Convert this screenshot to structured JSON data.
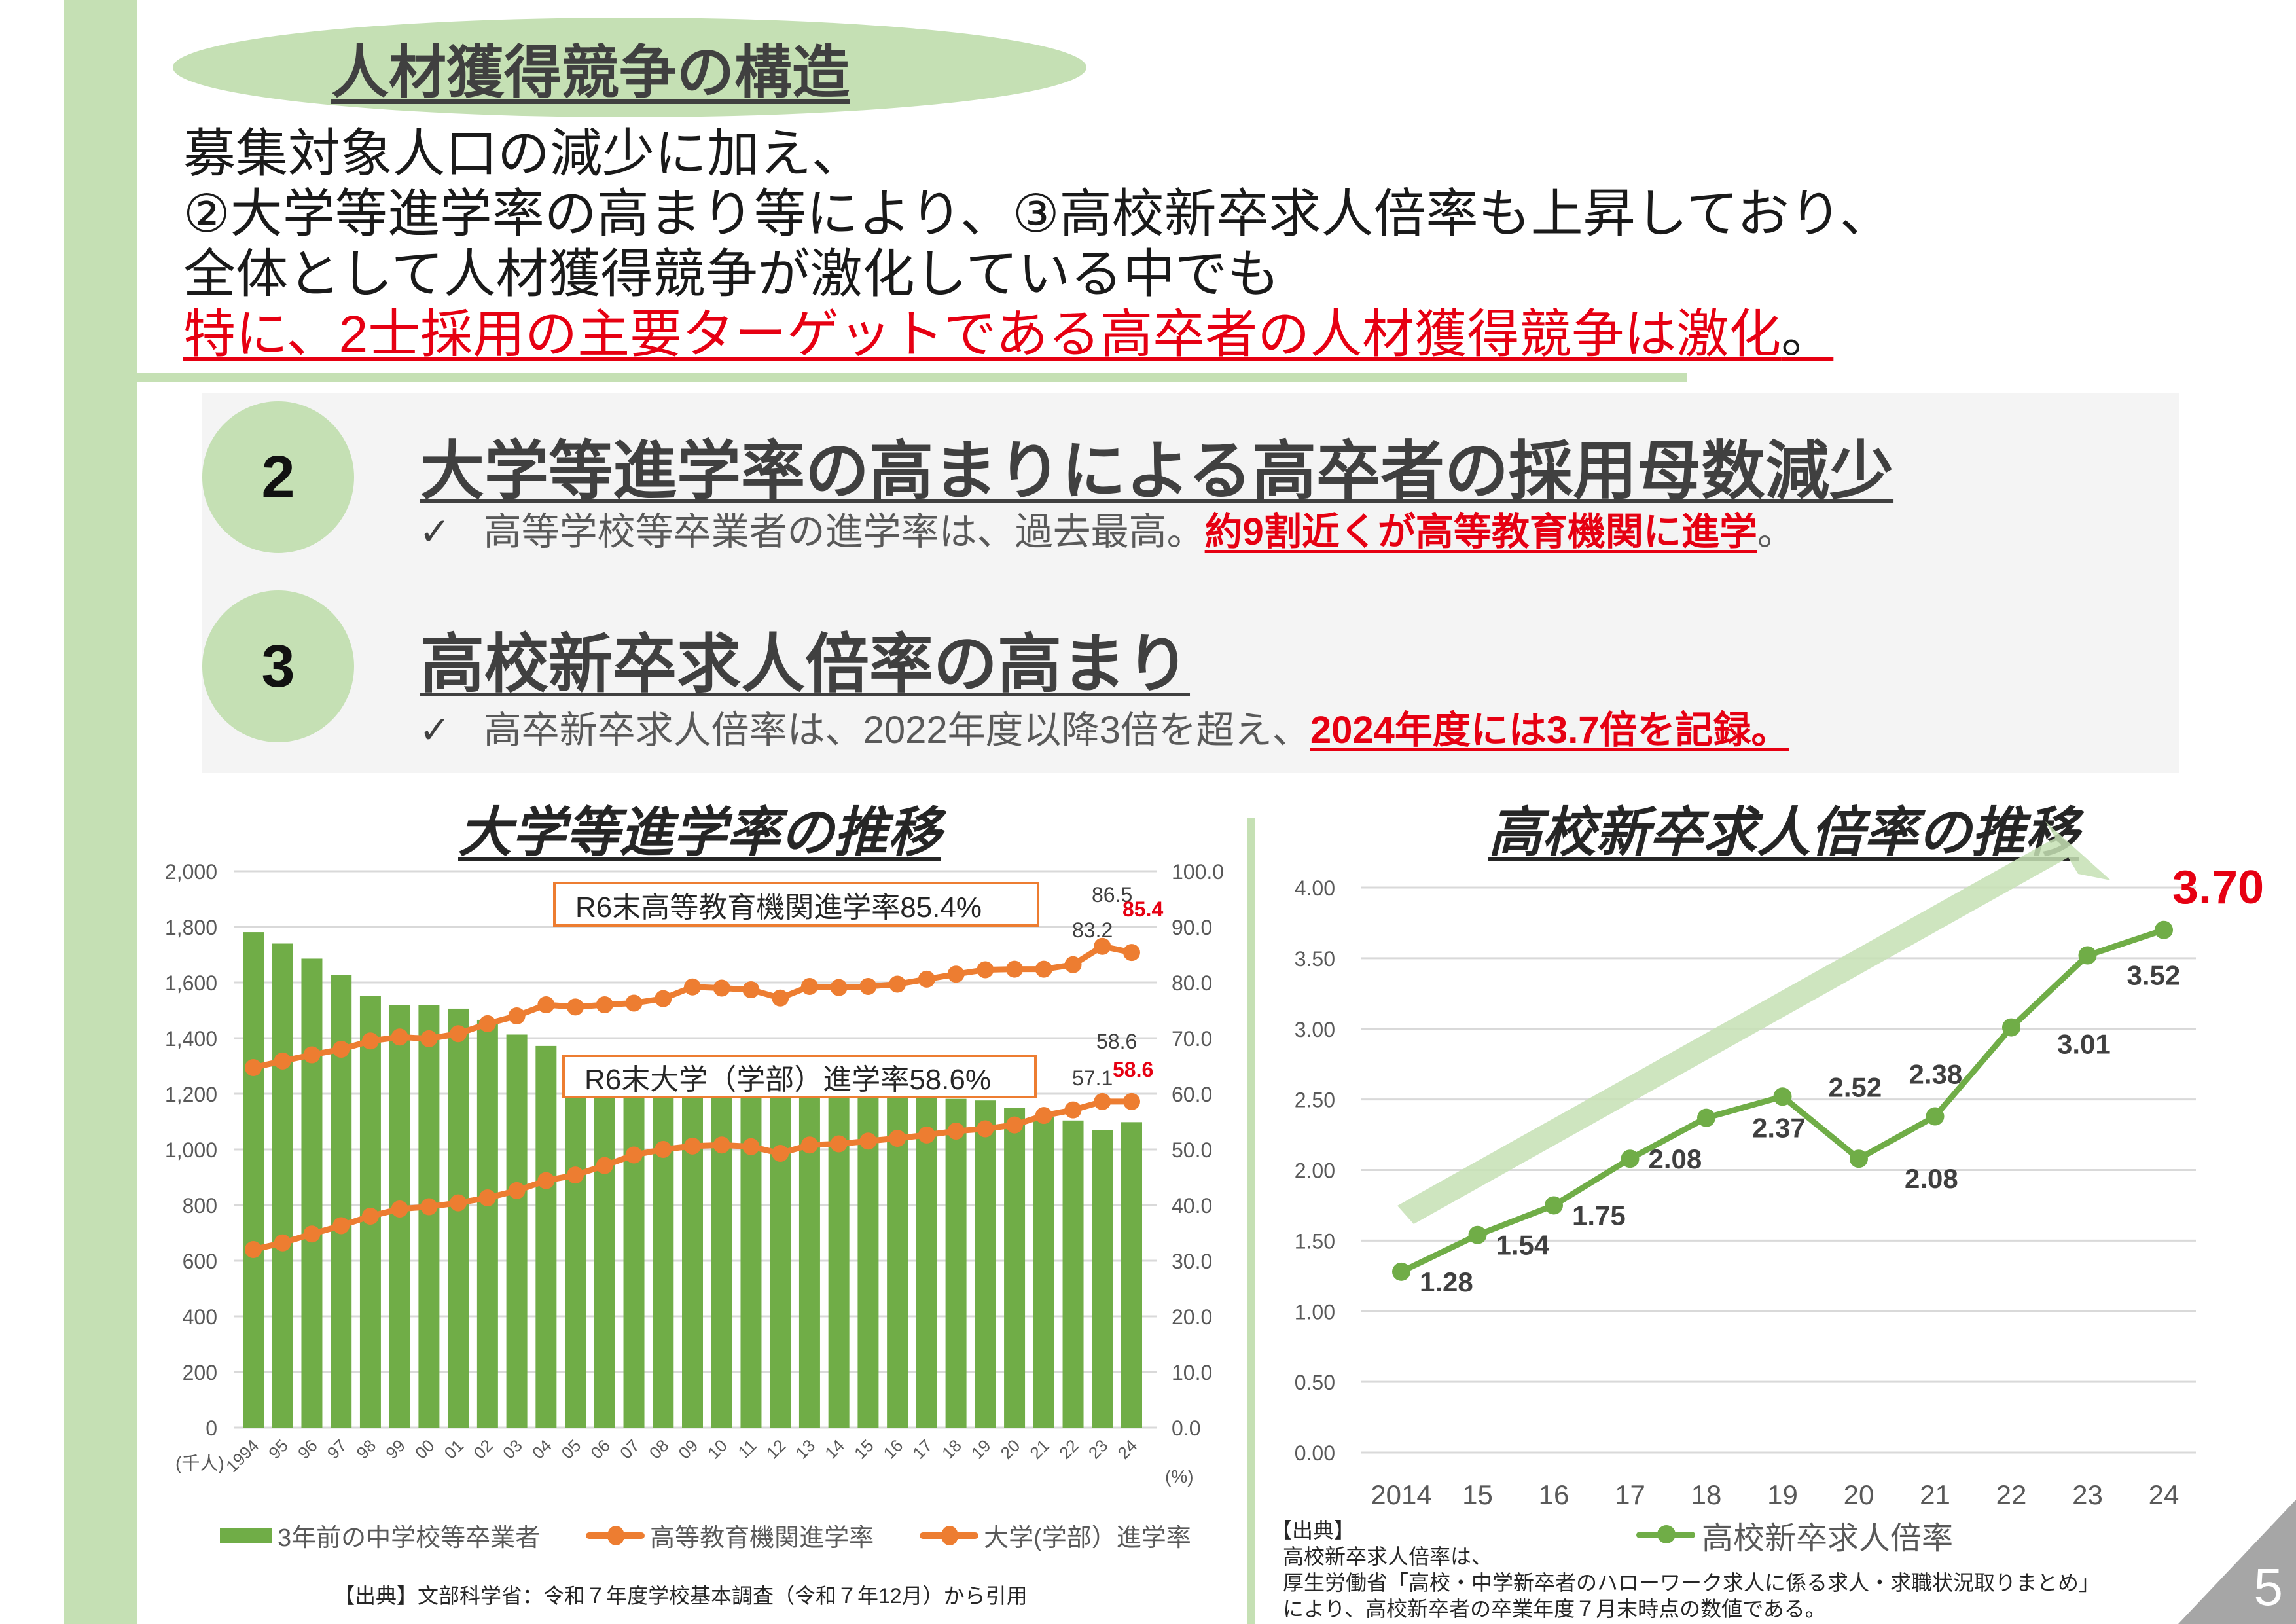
{
  "header": {
    "title": "人材獲得競争の構造"
  },
  "intro": {
    "line1": "募集対象人口の減少に加え、",
    "line2": "②大学等進学率の高まり等により、③高校新卒求人倍率も上昇しており、",
    "line3": "全体として人材獲得競争が激化している中でも",
    "line4": "特に、2士採用の主要ターゲットである高卒者の人材獲得競争は激化",
    "line4_end": "。"
  },
  "points": [
    {
      "number": "2",
      "heading": "大学等進学率の高まりによる高卒者の採用母数減少",
      "check": "✓",
      "text": "高等学校等卒業者の進学率は、過去最高。",
      "highlight": "約9割近くが高等教育機関に進学",
      "tail": "。"
    },
    {
      "number": "3",
      "heading": "高校新卒求人倍率の高まり",
      "check": "✓",
      "text": "高卒新卒求人倍率は、2022年度以降3倍を超え、",
      "highlight": "2024年度には3.7倍を記録。",
      "tail": ""
    }
  ],
  "colors": {
    "green": "#70ad47",
    "light_green": "#c5e0b4",
    "orange": "#ed7d31",
    "red": "#e60012"
  },
  "chart_data": [
    {
      "type": "bar+line",
      "title": "大学等進学率の推移",
      "categories": [
        "1994",
        "95",
        "96",
        "97",
        "98",
        "99",
        "00",
        "01",
        "02",
        "03",
        "04",
        "05",
        "06",
        "07",
        "08",
        "09",
        "10",
        "11",
        "12",
        "13",
        "14",
        "15",
        "16",
        "17",
        "18",
        "19",
        "20",
        "21",
        "22",
        "23",
        "24"
      ],
      "y_left": {
        "label": "(千人)",
        "range": [
          0,
          2000
        ],
        "ticks": [
          "0",
          "200",
          "400",
          "600",
          "800",
          "1,000",
          "1,200",
          "1,400",
          "1,600",
          "1,800",
          "2,000"
        ]
      },
      "y_right": {
        "label": "(%)",
        "range": [
          0,
          100
        ],
        "ticks": [
          "0.0",
          "10.0",
          "20.0",
          "30.0",
          "40.0",
          "50.0",
          "60.0",
          "70.0",
          "80.0",
          "90.0",
          "100.0"
        ]
      },
      "grid": true,
      "series": [
        {
          "name": "3年前の中学校等卒業者",
          "type": "bar",
          "axis": "left",
          "values": [
            1781,
            1740,
            1686,
            1628,
            1552,
            1518,
            1518,
            1506,
            1466,
            1413,
            1372,
            1237,
            1211,
            1213,
            1196,
            1202,
            1213,
            1227,
            1207,
            1195,
            1197,
            1191,
            1185,
            1186,
            1182,
            1176,
            1150,
            1116,
            1104,
            1070,
            1098
          ]
        },
        {
          "name": "高等教育機関進学率",
          "type": "line",
          "axis": "right",
          "values": [
            64.7,
            65.9,
            67.0,
            68.0,
            69.5,
            70.2,
            69.9,
            70.8,
            72.6,
            74.0,
            76.0,
            75.6,
            76.0,
            76.3,
            77.1,
            79.2,
            79.0,
            78.7,
            77.2,
            79.3,
            79.1,
            79.3,
            79.7,
            80.6,
            81.5,
            82.3,
            82.4,
            82.4,
            83.2,
            86.5,
            85.4
          ]
        },
        {
          "name": "大学(学部）進学率",
          "type": "line",
          "axis": "right",
          "values": [
            32.0,
            33.2,
            34.8,
            36.3,
            38.0,
            39.3,
            39.7,
            40.4,
            41.3,
            42.6,
            44.4,
            45.4,
            47.1,
            49.0,
            50.0,
            50.6,
            50.8,
            50.5,
            49.3,
            50.8,
            51.0,
            51.5,
            52.0,
            52.6,
            53.3,
            53.7,
            54.4,
            56.1,
            57.1,
            58.6,
            58.6
          ]
        }
      ],
      "data_labels": {
        "he_2022": "83.2",
        "he_2023": "86.5",
        "he_2024": "85.4",
        "uni_2022": "57.1",
        "uni_2023": "58.6",
        "uni_2024": "58.6"
      },
      "callouts": [
        "R6末高等教育機関進学率85.4%",
        "R6末大学（学部）進学率58.6%"
      ],
      "legend_position": "bottom",
      "source": "【出典】文部科学省：令和７年度学校基本調査（令和７年12月）から引用"
    },
    {
      "type": "line",
      "title": "高校新卒求人倍率の推移",
      "categories": [
        "2014",
        "15",
        "16",
        "17",
        "18",
        "19",
        "20",
        "21",
        "22",
        "23",
        "24"
      ],
      "y": {
        "range": [
          0,
          4
        ],
        "ticks": [
          "0.00",
          "0.50",
          "1.00",
          "1.50",
          "2.00",
          "2.50",
          "3.00",
          "3.50",
          "4.00"
        ]
      },
      "grid": true,
      "series": [
        {
          "name": "高校新卒求人倍率",
          "values": [
            1.28,
            1.54,
            1.75,
            2.08,
            2.37,
            2.52,
            2.08,
            2.38,
            3.01,
            3.52,
            3.7
          ]
        }
      ],
      "data_labels": [
        "1.28",
        "1.54",
        "1.75",
        "2.08",
        "2.37",
        "2.52",
        "2.08",
        "2.38",
        "3.01",
        "3.52",
        "3.70"
      ],
      "legend_position": "bottom",
      "source_title": "【出典】",
      "source_lines": [
        "高校新卒求人倍率は、",
        "厚生労働省「高校・中学新卒者のハローワーク求人に係る求人・求職状況取りまとめ」",
        "により、高校新卒者の卒業年度７月末時点の数値である。"
      ]
    }
  ],
  "page_number": "5"
}
